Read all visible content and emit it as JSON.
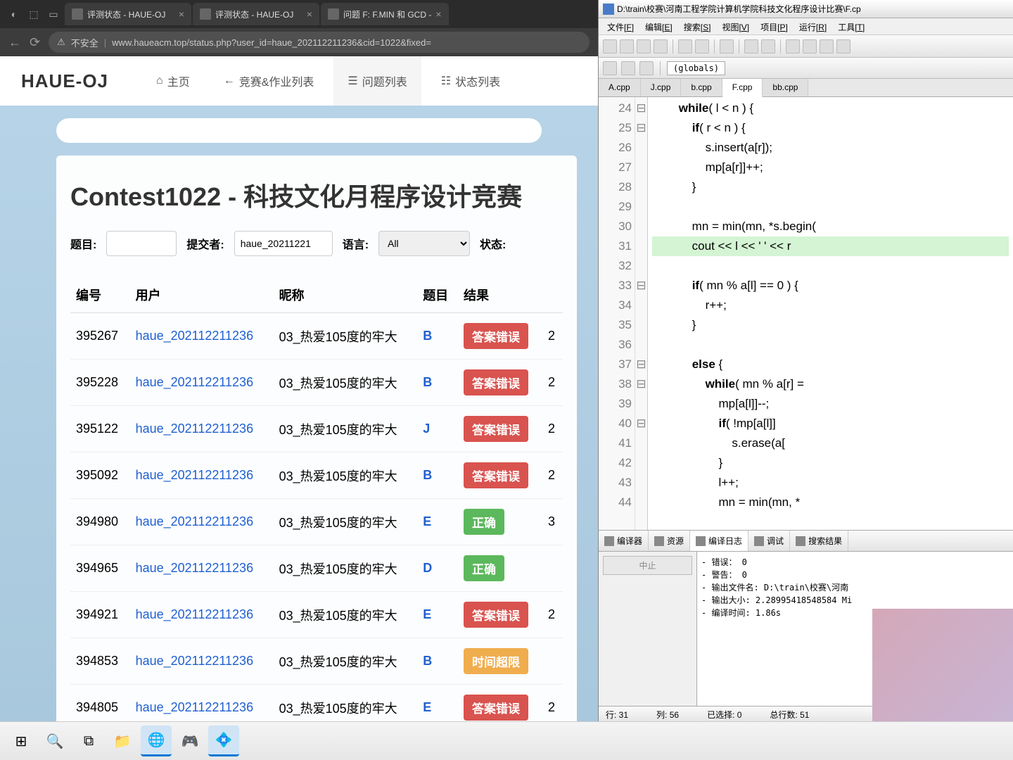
{
  "browser": {
    "tabs": [
      {
        "title": "评测状态 - HAUE-OJ"
      },
      {
        "title": "评测状态 - HAUE-OJ"
      },
      {
        "title": "问题 F: F.MIN 和 GCD -"
      }
    ],
    "security": "不安全",
    "url": "www.haueacm.top/status.php?user_id=haue_202112211236&cid=1022&fixed="
  },
  "page": {
    "logo": "HAUE-OJ",
    "nav": {
      "home": "主页",
      "contest": "竞赛&作业列表",
      "problems": "问题列表",
      "status": "状态列表"
    },
    "title": "Contest1022 - 科技文化月程序设计竞赛",
    "filters": {
      "problem": "题目:",
      "submitter": "提交者:",
      "submitter_val": "haue_20211221",
      "lang": "语言:",
      "lang_val": "All",
      "status": "状态:"
    },
    "headers": {
      "id": "编号",
      "user": "用户",
      "nick": "昵称",
      "prob": "题目",
      "result": "结果"
    },
    "rows": [
      {
        "id": "395267",
        "user": "haue_202112211236",
        "nick": "03_热爱105度的牢大",
        "prob": "B",
        "result": "答案错误",
        "cls": "red",
        "t": "2"
      },
      {
        "id": "395228",
        "user": "haue_202112211236",
        "nick": "03_热爱105度的牢大",
        "prob": "B",
        "result": "答案错误",
        "cls": "red",
        "t": "2"
      },
      {
        "id": "395122",
        "user": "haue_202112211236",
        "nick": "03_热爱105度的牢大",
        "prob": "J",
        "result": "答案错误",
        "cls": "red",
        "t": "2"
      },
      {
        "id": "395092",
        "user": "haue_202112211236",
        "nick": "03_热爱105度的牢大",
        "prob": "B",
        "result": "答案错误",
        "cls": "red",
        "t": "2"
      },
      {
        "id": "394980",
        "user": "haue_202112211236",
        "nick": "03_热爱105度的牢大",
        "prob": "E",
        "result": "正确",
        "cls": "green",
        "t": "3"
      },
      {
        "id": "394965",
        "user": "haue_202112211236",
        "nick": "03_热爱105度的牢大",
        "prob": "D",
        "result": "正确",
        "cls": "green",
        "t": ""
      },
      {
        "id": "394921",
        "user": "haue_202112211236",
        "nick": "03_热爱105度的牢大",
        "prob": "E",
        "result": "答案错误",
        "cls": "red",
        "t": "2"
      },
      {
        "id": "394853",
        "user": "haue_202112211236",
        "nick": "03_热爱105度的牢大",
        "prob": "B",
        "result": "时间超限",
        "cls": "orange",
        "t": ""
      },
      {
        "id": "394805",
        "user": "haue_202112211236",
        "nick": "03_热爱105度的牢大",
        "prob": "E",
        "result": "答案错误",
        "cls": "red",
        "t": "2"
      }
    ]
  },
  "ide": {
    "title": "D:\\train\\校赛\\河南工程学院计算机学院科技文化程序设计比赛\\F.cp",
    "menus": [
      "文件[F]",
      "编辑[E]",
      "搜索[S]",
      "视图[V]",
      "项目[P]",
      "运行[R]",
      "工具[T]"
    ],
    "globals": "(globals)",
    "tabs": [
      "A.cpp",
      "J.cpp",
      "b.cpp",
      "F.cpp",
      "bb.cpp"
    ],
    "active_tab": 3,
    "btabs": [
      "编译器",
      "资源",
      "编译日志",
      "调试",
      "搜索结果"
    ],
    "active_btab": 2,
    "stop_btn": "中止",
    "log": [
      "- 错误： 0",
      "- 警告： 0",
      "- 输出文件名: D:\\train\\校赛\\河南",
      "- 输出大小: 2.28995418548584 Mi",
      "- 编译时间: 1.86s"
    ],
    "status": {
      "line": "行:  31",
      "col": "列:  56",
      "sel": "已选择:   0",
      "total": "总行数:  51"
    }
  },
  "code": {
    "start": 24,
    "lines": [
      "        <b>while</b>( l < n ) {",
      "            <b>if</b>( r < n ) {",
      "                s.insert(a[r]);",
      "                mp[a[r]]++;",
      "            }",
      "",
      "            mn = min(mn, *s.begin(",
      "            cout << l << ' ' << r ",
      "",
      "            <b>if</b>( mn % a[l] == 0 ) {",
      "                r++;",
      "            }",
      "",
      "            <b>else</b> {",
      "                <b>while</b>( mn % a[r] =",
      "                    mp[a[l]]--;",
      "                    <b>if</b>( !mp[a[l]] ",
      "                        s.erase(a[",
      "                    }",
      "                    l++;",
      "                    mn = min(mn, *"
    ],
    "folds": [
      "⊟",
      "⊟",
      "",
      "",
      "",
      "",
      "",
      "",
      "",
      "⊟",
      "",
      "",
      "",
      "⊟",
      "⊟",
      "",
      "⊟",
      "",
      "",
      "",
      ""
    ],
    "hl_index": 7
  }
}
